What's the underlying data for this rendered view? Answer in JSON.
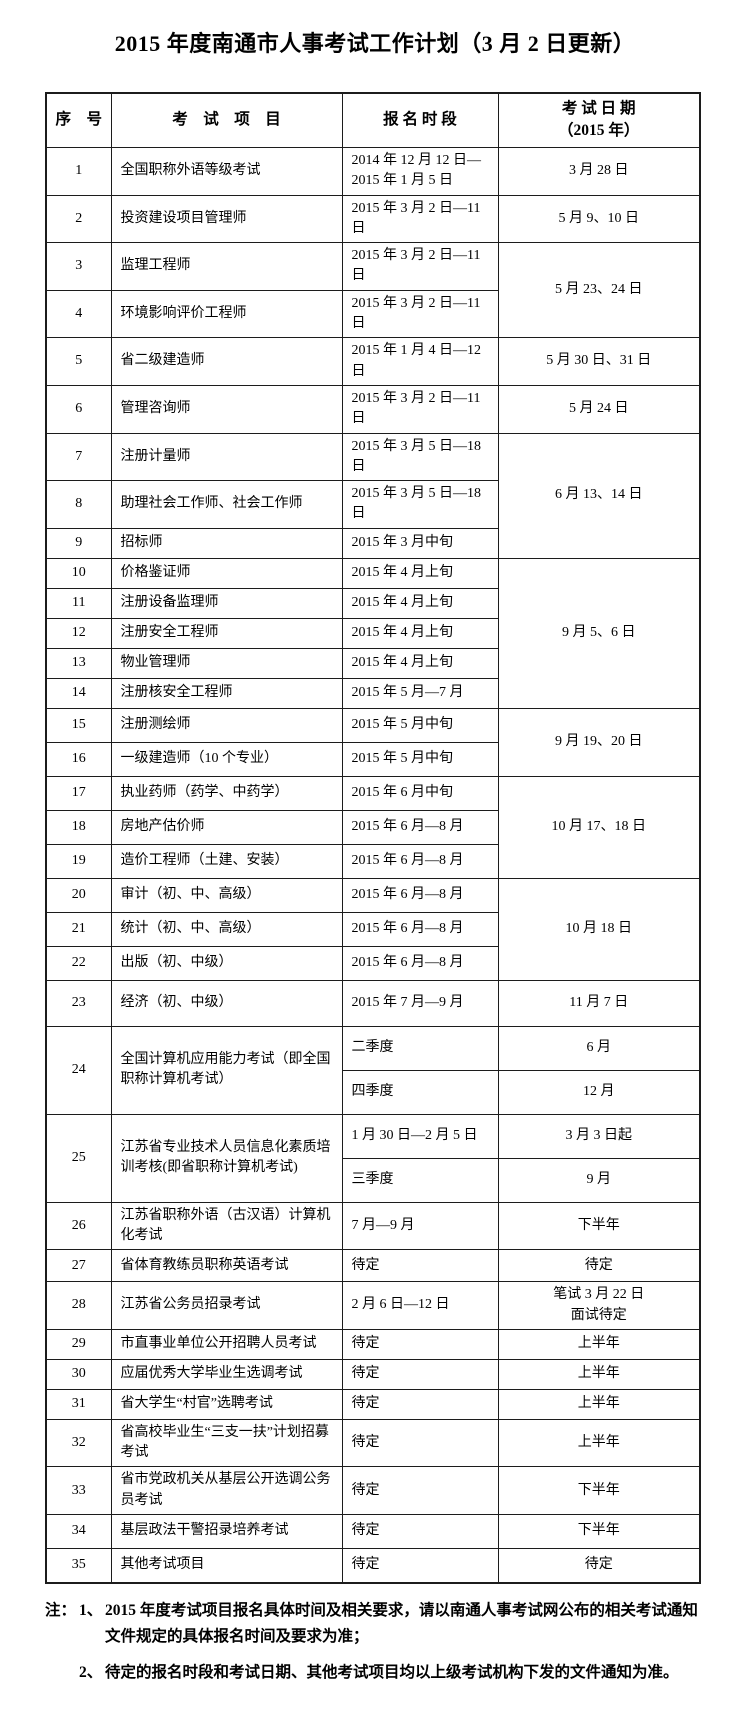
{
  "title": "2015 年度南通市人事考试工作计划（3 月 2 日更新）",
  "table": {
    "headers": [
      "序　号",
      "考　试　项　目",
      "报 名 时 段",
      "考 试 日 期\n（2015 年）"
    ],
    "rows": [
      {
        "cells": [
          {
            "c": "num",
            "t": "1"
          },
          {
            "c": "project",
            "t": "全国职称外语等级考试"
          },
          {
            "c": "reg",
            "t": "2014 年 12 月 12 日—2015 年 1 月 5 日"
          },
          {
            "c": "date",
            "t": "3 月 28 日"
          }
        ]
      },
      {
        "cells": [
          {
            "c": "num",
            "t": "2"
          },
          {
            "c": "project",
            "t": "投资建设项目管理师"
          },
          {
            "c": "reg",
            "t": "2015 年 3 月 2 日—11 日"
          },
          {
            "c": "date",
            "t": "5 月 9、10 日"
          }
        ]
      },
      {
        "cells": [
          {
            "c": "num",
            "t": "3"
          },
          {
            "c": "project",
            "t": "监理工程师"
          },
          {
            "c": "reg",
            "t": "2015 年 3 月 2 日—11 日"
          },
          {
            "c": "date",
            "t": "5 月 23、24 日",
            "rs": 2
          }
        ]
      },
      {
        "cells": [
          {
            "c": "num",
            "t": "4"
          },
          {
            "c": "project",
            "t": "环境影响评价工程师"
          },
          {
            "c": "reg",
            "t": "2015 年 3 月 2 日—11 日"
          }
        ]
      },
      {
        "cells": [
          {
            "c": "num",
            "t": "5"
          },
          {
            "c": "project",
            "t": "省二级建造师"
          },
          {
            "c": "reg",
            "t": "2015 年 1 月 4 日—12 日"
          },
          {
            "c": "date",
            "t": "5 月 30 日、31 日"
          }
        ]
      },
      {
        "cells": [
          {
            "c": "num",
            "t": "6"
          },
          {
            "c": "project",
            "t": "管理咨询师"
          },
          {
            "c": "reg",
            "t": "2015 年 3 月 2 日—11 日"
          },
          {
            "c": "date",
            "t": "5 月 24 日"
          }
        ]
      },
      {
        "cells": [
          {
            "c": "num",
            "t": "7"
          },
          {
            "c": "project",
            "t": "注册计量师"
          },
          {
            "c": "reg",
            "t": "2015 年 3 月 5 日—18 日"
          },
          {
            "c": "date",
            "t": "6 月 13、14 日",
            "rs": 3
          }
        ]
      },
      {
        "cells": [
          {
            "c": "num",
            "t": "8"
          },
          {
            "c": "project",
            "t": "助理社会工作师、社会工作师"
          },
          {
            "c": "reg",
            "t": "2015 年 3 月 5 日—18 日"
          }
        ]
      },
      {
        "cells": [
          {
            "c": "num",
            "t": "9"
          },
          {
            "c": "project",
            "t": "招标师"
          },
          {
            "c": "reg",
            "t": "2015 年 3 月中旬"
          }
        ]
      },
      {
        "cells": [
          {
            "c": "num",
            "t": "10"
          },
          {
            "c": "project",
            "t": "价格鉴证师"
          },
          {
            "c": "reg",
            "t": "2015 年 4 月上旬"
          },
          {
            "c": "date",
            "t": "9 月 5、6 日",
            "rs": 5
          }
        ]
      },
      {
        "cells": [
          {
            "c": "num",
            "t": "11"
          },
          {
            "c": "project",
            "t": "注册设备监理师"
          },
          {
            "c": "reg",
            "t": "2015 年 4 月上旬"
          }
        ]
      },
      {
        "cells": [
          {
            "c": "num",
            "t": "12"
          },
          {
            "c": "project",
            "t": "注册安全工程师"
          },
          {
            "c": "reg",
            "t": "2015 年 4 月上旬"
          }
        ]
      },
      {
        "cells": [
          {
            "c": "num",
            "t": "13"
          },
          {
            "c": "project",
            "t": "物业管理师"
          },
          {
            "c": "reg",
            "t": "2015 年 4 月上旬"
          }
        ]
      },
      {
        "cells": [
          {
            "c": "num",
            "t": "14"
          },
          {
            "c": "project",
            "t": "注册核安全工程师"
          },
          {
            "c": "reg",
            "t": "2015 年 5 月—7 月"
          }
        ]
      },
      {
        "cells": [
          {
            "c": "num",
            "t": "15"
          },
          {
            "c": "project",
            "t": "注册测绘师"
          },
          {
            "c": "reg",
            "t": "2015 年 5 月中旬"
          },
          {
            "c": "date",
            "t": "9 月 19、20 日",
            "rs": 2
          }
        ]
      },
      {
        "cells": [
          {
            "c": "num",
            "t": "16"
          },
          {
            "c": "project",
            "t": "一级建造师（10 个专业）"
          },
          {
            "c": "reg",
            "t": "2015 年 5 月中旬"
          }
        ]
      },
      {
        "cells": [
          {
            "c": "num",
            "t": "17"
          },
          {
            "c": "project",
            "t": "执业药师（药学、中药学）"
          },
          {
            "c": "reg",
            "t": "2015 年 6 月中旬"
          },
          {
            "c": "date",
            "t": "10 月 17、18 日",
            "rs": 3
          }
        ]
      },
      {
        "cells": [
          {
            "c": "num",
            "t": "18"
          },
          {
            "c": "project",
            "t": "房地产估价师"
          },
          {
            "c": "reg",
            "t": "2015 年 6 月—8 月"
          }
        ]
      },
      {
        "cells": [
          {
            "c": "num",
            "t": "19"
          },
          {
            "c": "project",
            "t": "造价工程师（土建、安装）"
          },
          {
            "c": "reg",
            "t": "2015 年 6 月—8 月"
          }
        ]
      },
      {
        "cells": [
          {
            "c": "num",
            "t": "20"
          },
          {
            "c": "project",
            "t": "审计（初、中、高级）"
          },
          {
            "c": "reg",
            "t": "2015 年 6 月—8 月"
          },
          {
            "c": "date",
            "t": "10 月 18 日",
            "rs": 3
          }
        ]
      },
      {
        "cells": [
          {
            "c": "num",
            "t": "21"
          },
          {
            "c": "project",
            "t": "统计（初、中、高级）"
          },
          {
            "c": "reg",
            "t": "2015 年 6 月—8 月"
          }
        ]
      },
      {
        "cells": [
          {
            "c": "num",
            "t": "22"
          },
          {
            "c": "project",
            "t": "出版（初、中级）"
          },
          {
            "c": "reg",
            "t": "2015 年 6 月—8 月"
          }
        ]
      },
      {
        "cells": [
          {
            "c": "num",
            "t": "23"
          },
          {
            "c": "project",
            "t": "经济（初、中级）"
          },
          {
            "c": "reg",
            "t": "2015 年 7 月—9 月"
          },
          {
            "c": "date",
            "t": "11 月 7 日"
          }
        ]
      },
      {
        "cells": [
          {
            "c": "num",
            "t": "24",
            "rs": 2
          },
          {
            "c": "project",
            "t": "全国计算机应用能力考试（即全国职称计算机考试）",
            "rs": 2
          },
          {
            "c": "reg",
            "t": "二季度"
          },
          {
            "c": "date",
            "t": "6 月"
          }
        ]
      },
      {
        "cells": [
          {
            "c": "reg",
            "t": "四季度"
          },
          {
            "c": "date",
            "t": "12 月"
          }
        ]
      },
      {
        "cells": [
          {
            "c": "num",
            "t": "25",
            "rs": 2
          },
          {
            "c": "project",
            "t": "江苏省专业技术人员信息化素质培训考核(即省职称计算机考试)",
            "rs": 2
          },
          {
            "c": "reg",
            "t": "1 月 30 日—2 月 5 日"
          },
          {
            "c": "date",
            "t": "3 月 3 日起"
          }
        ]
      },
      {
        "cells": [
          {
            "c": "reg",
            "t": "三季度"
          },
          {
            "c": "date",
            "t": "9 月"
          }
        ]
      },
      {
        "cells": [
          {
            "c": "num",
            "t": "26"
          },
          {
            "c": "project",
            "t": "江苏省职称外语（古汉语）计算机化考试"
          },
          {
            "c": "reg",
            "t": "7 月—9 月"
          },
          {
            "c": "date",
            "t": "下半年"
          }
        ]
      },
      {
        "cells": [
          {
            "c": "num",
            "t": "27"
          },
          {
            "c": "project",
            "t": "省体育教练员职称英语考试"
          },
          {
            "c": "reg",
            "t": "待定"
          },
          {
            "c": "date",
            "t": "待定"
          }
        ]
      },
      {
        "cells": [
          {
            "c": "num",
            "t": "28"
          },
          {
            "c": "project",
            "t": "江苏省公务员招录考试"
          },
          {
            "c": "reg",
            "t": "2 月 6 日—12 日"
          },
          {
            "c": "date",
            "t": "笔试 3 月 22 日\n面试待定"
          }
        ]
      },
      {
        "cells": [
          {
            "c": "num",
            "t": "29"
          },
          {
            "c": "project",
            "t": "市直事业单位公开招聘人员考试"
          },
          {
            "c": "reg",
            "t": "待定"
          },
          {
            "c": "date",
            "t": "上半年"
          }
        ]
      },
      {
        "cells": [
          {
            "c": "num",
            "t": "30"
          },
          {
            "c": "project",
            "t": "应届优秀大学毕业生选调考试"
          },
          {
            "c": "reg",
            "t": "待定"
          },
          {
            "c": "date",
            "t": "上半年"
          }
        ]
      },
      {
        "cells": [
          {
            "c": "num",
            "t": "31"
          },
          {
            "c": "project",
            "t": "省大学生“村官”选聘考试"
          },
          {
            "c": "reg",
            "t": "待定"
          },
          {
            "c": "date",
            "t": "上半年"
          }
        ]
      },
      {
        "cells": [
          {
            "c": "num",
            "t": "32"
          },
          {
            "c": "project",
            "t": "省高校毕业生“三支一扶”计划招募考试"
          },
          {
            "c": "reg",
            "t": "待定"
          },
          {
            "c": "date",
            "t": "上半年"
          }
        ]
      },
      {
        "cells": [
          {
            "c": "num",
            "t": "33"
          },
          {
            "c": "project",
            "t": "省市党政机关从基层公开选调公务员考试"
          },
          {
            "c": "reg",
            "t": "待定"
          },
          {
            "c": "date",
            "t": "下半年"
          }
        ]
      },
      {
        "cells": [
          {
            "c": "num",
            "t": "34"
          },
          {
            "c": "project",
            "t": "基层政法干警招录培养考试"
          },
          {
            "c": "reg",
            "t": "待定"
          },
          {
            "c": "date",
            "t": "下半年"
          }
        ]
      },
      {
        "cells": [
          {
            "c": "num",
            "t": "35"
          },
          {
            "c": "project",
            "t": "其他考试项目"
          },
          {
            "c": "reg",
            "t": "待定"
          },
          {
            "c": "date",
            "t": "待定"
          }
        ]
      }
    ]
  },
  "notes": {
    "label": "注：",
    "items": [
      {
        "no": "1、",
        "text": "2015 年度考试项目报名具体时间及相关要求，请以南通人事考试网公布的相关考试通知文件规定的具体报名时间及要求为准；"
      },
      {
        "no": "2、",
        "text": "待定的报名时段和考试日期、其他考试项目均以上级考试机构下发的文件通知为准。"
      }
    ]
  }
}
